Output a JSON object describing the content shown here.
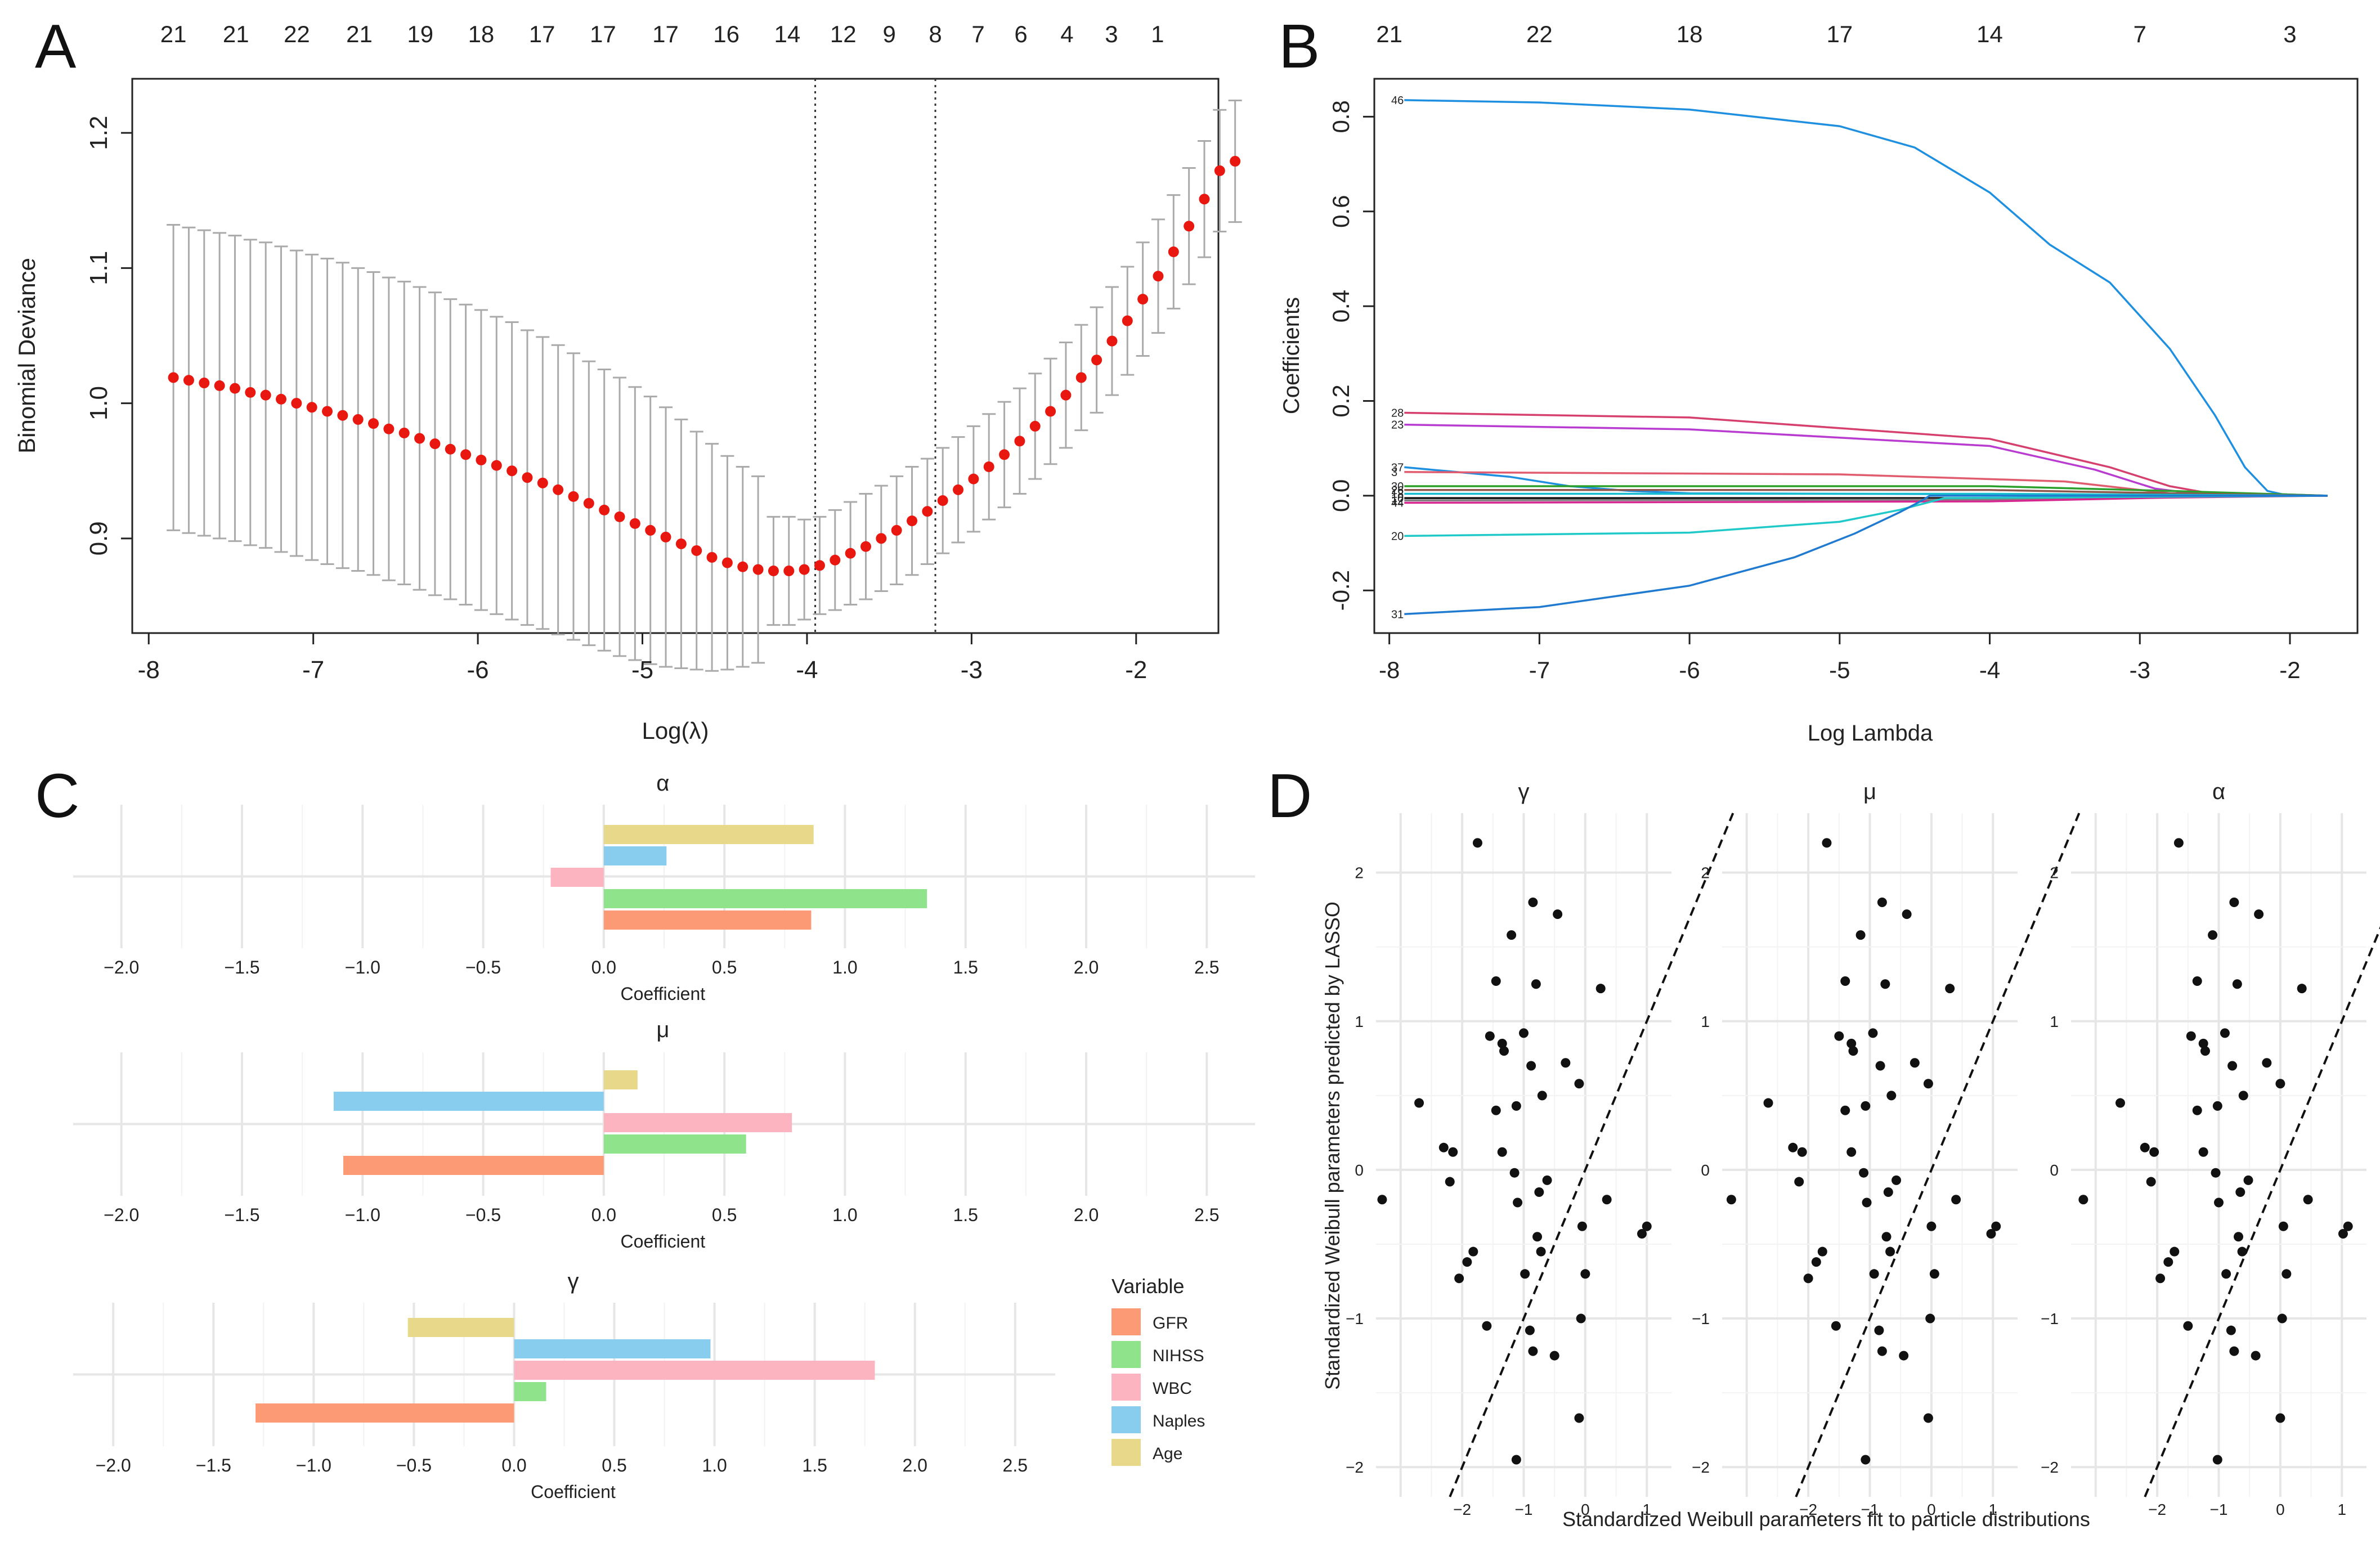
{
  "panels": {
    "a": "A",
    "b": "B",
    "c": "C",
    "d": "D"
  },
  "colors": {
    "cv_point": "#e8170f",
    "cv_bar": "#aaaaaa",
    "grid": "#e6e6e6",
    "gfr": "#fb9a74",
    "nihss": "#8ee38b",
    "wbc": "#fdb4c1",
    "naples": "#89cdee",
    "age": "#e8d88a"
  },
  "chart_data": [
    {
      "id": "cv",
      "type": "scatter",
      "title": "",
      "xlabel": "Log(λ)",
      "ylabel": "Binomial Deviance",
      "xlim": [
        -8.1,
        -1.5
      ],
      "ylim": [
        0.83,
        1.24
      ],
      "xticks": [
        -8,
        -7,
        -6,
        -5,
        -4,
        -3,
        -2
      ],
      "yticks": [
        0.9,
        1.0,
        1.1,
        1.2
      ],
      "top_axis": {
        "x": [
          -7.85,
          -7.47,
          -7.1,
          -6.72,
          -6.35,
          -5.98,
          -5.61,
          -5.24,
          -4.86,
          -4.49,
          -4.12,
          -3.78,
          -3.5,
          -3.22,
          -2.96,
          -2.7,
          -2.42,
          -2.15,
          -1.87
        ],
        "labels": [
          "21",
          "21",
          "22",
          "21",
          "19",
          "18",
          "17",
          "17",
          "17",
          "16",
          "14",
          "12",
          "9",
          "8",
          "7",
          "6",
          "4",
          "3",
          "1"
        ]
      },
      "vlines": [
        -3.95,
        -3.22
      ],
      "points": {
        "x_start": -7.85,
        "x_step": 0.0935,
        "y": [
          1.019,
          1.017,
          1.015,
          1.013,
          1.011,
          1.008,
          1.006,
          1.003,
          1.0,
          0.997,
          0.994,
          0.991,
          0.988,
          0.985,
          0.981,
          0.978,
          0.974,
          0.97,
          0.966,
          0.962,
          0.958,
          0.954,
          0.95,
          0.945,
          0.941,
          0.936,
          0.931,
          0.926,
          0.921,
          0.916,
          0.911,
          0.906,
          0.901,
          0.896,
          0.891,
          0.886,
          0.882,
          0.879,
          0.877,
          0.876,
          0.876,
          0.877,
          0.88,
          0.884,
          0.889,
          0.894,
          0.9,
          0.906,
          0.913,
          0.92,
          0.928,
          0.936,
          0.944,
          0.953,
          0.962,
          0.972,
          0.983,
          0.994,
          1.006,
          1.019,
          1.032,
          1.046,
          1.061,
          1.077,
          1.094,
          1.112,
          1.131,
          1.151,
          1.172,
          1.179
        ],
        "sd": [
          0.113,
          0.113,
          0.113,
          0.113,
          0.113,
          0.113,
          0.113,
          0.113,
          0.113,
          0.113,
          0.113,
          0.113,
          0.112,
          0.112,
          0.112,
          0.112,
          0.112,
          0.112,
          0.111,
          0.111,
          0.111,
          0.11,
          0.11,
          0.109,
          0.108,
          0.107,
          0.106,
          0.105,
          0.104,
          0.103,
          0.101,
          0.099,
          0.096,
          0.092,
          0.088,
          0.084,
          0.079,
          0.074,
          0.069,
          0.04,
          0.04,
          0.037,
          0.036,
          0.037,
          0.038,
          0.039,
          0.039,
          0.04,
          0.04,
          0.039,
          0.039,
          0.039,
          0.039,
          0.039,
          0.039,
          0.039,
          0.039,
          0.039,
          0.039,
          0.039,
          0.039,
          0.04,
          0.04,
          0.042,
          0.042,
          0.042,
          0.043,
          0.043,
          0.045,
          0.045
        ]
      }
    },
    {
      "id": "path",
      "type": "line",
      "title": "",
      "xlabel": "Log Lambda",
      "ylabel": "Coefficients",
      "xlim": [
        -8.1,
        -1.55
      ],
      "ylim": [
        -0.29,
        0.88
      ],
      "xticks": [
        -8,
        -7,
        -6,
        -5,
        -4,
        -3,
        -2
      ],
      "yticks": [
        -0.2,
        0.0,
        0.2,
        0.4,
        0.6,
        0.8
      ],
      "top_axis": {
        "x": [
          -8,
          -7,
          -6,
          -5,
          -4,
          -3,
          -2
        ],
        "labels": [
          "21",
          "22",
          "18",
          "17",
          "14",
          "7",
          "3"
        ]
      },
      "series": [
        {
          "name": "46",
          "color": "#1f8fe0",
          "x": [
            -7.9,
            -7,
            -6,
            -5,
            -4.5,
            -4,
            -3.6,
            -3.2,
            -2.8,
            -2.5,
            -2.3,
            -2.15,
            -2.05,
            -1.75
          ],
          "y": [
            0.835,
            0.83,
            0.815,
            0.78,
            0.735,
            0.64,
            0.53,
            0.45,
            0.31,
            0.17,
            0.06,
            0.01,
            0.003,
            0.0
          ]
        },
        {
          "name": "28",
          "color": "#d6406e",
          "x": [
            -7.9,
            -6,
            -4,
            -3.2,
            -2.8,
            -2.5,
            -1.75
          ],
          "y": [
            0.175,
            0.165,
            0.12,
            0.06,
            0.02,
            0.003,
            0.0
          ]
        },
        {
          "name": "23",
          "color": "#b83cd0",
          "x": [
            -7.9,
            -6,
            -4,
            -3.3,
            -2.9,
            -2.6,
            -1.75
          ],
          "y": [
            0.15,
            0.14,
            0.105,
            0.055,
            0.015,
            0.003,
            0.0
          ]
        },
        {
          "name": "37",
          "color": "#1f8fe0",
          "x": [
            -7.9,
            -7.2,
            -6.8,
            -6.4,
            -6,
            -5,
            -4,
            -3,
            -1.75
          ],
          "y": [
            0.06,
            0.04,
            0.02,
            0.01,
            0.005,
            0.004,
            0.003,
            0.002,
            0.0
          ]
        },
        {
          "name": "3",
          "color": "#e05c6e",
          "x": [
            -7.9,
            -5,
            -3.5,
            -2.8,
            -1.75
          ],
          "y": [
            0.05,
            0.045,
            0.03,
            0.005,
            0.0
          ]
        },
        {
          "name": "30",
          "color": "#2ca02c",
          "x": [
            -7.9,
            -4,
            -2.8,
            -1.75
          ],
          "y": [
            0.02,
            0.02,
            0.01,
            0.0
          ]
        },
        {
          "name": "26",
          "color": "#8c564b",
          "x": [
            -7.9,
            -4,
            -2.8,
            -1.75
          ],
          "y": [
            0.012,
            0.012,
            0.005,
            0.0
          ]
        },
        {
          "name": "18",
          "color": "#17becf",
          "x": [
            -7.9,
            -4,
            -2.8,
            -1.75
          ],
          "y": [
            0.004,
            0.004,
            0.002,
            0.0
          ]
        },
        {
          "name": "10",
          "color": "#111111",
          "x": [
            -7.9,
            -4,
            -2.8,
            -1.75
          ],
          "y": [
            -0.005,
            -0.005,
            -0.002,
            0.0
          ]
        },
        {
          "name": "12",
          "color": "#7f7f7f",
          "x": [
            -7.9,
            -4,
            -2.8,
            -1.75
          ],
          "y": [
            -0.01,
            -0.008,
            -0.003,
            0.0
          ]
        },
        {
          "name": "44",
          "color": "#d62790",
          "x": [
            -7.9,
            -4,
            -2.8,
            -1.75
          ],
          "y": [
            -0.015,
            -0.012,
            -0.004,
            0.0
          ]
        },
        {
          "name": "20",
          "color": "#20c9c9",
          "x": [
            -7.9,
            -6,
            -5,
            -4.6,
            -4.3,
            -1.75
          ],
          "y": [
            -0.085,
            -0.078,
            -0.055,
            -0.03,
            -0.005,
            0.0
          ]
        },
        {
          "name": "31",
          "color": "#1f7ad0",
          "x": [
            -7.9,
            -7,
            -6,
            -5.3,
            -4.9,
            -4.6,
            -4.45,
            -4.4,
            -1.75
          ],
          "y": [
            -0.25,
            -0.235,
            -0.19,
            -0.13,
            -0.08,
            -0.035,
            -0.01,
            0.0,
            0.0
          ]
        }
      ]
    },
    {
      "id": "alpha",
      "type": "bar",
      "title": "α",
      "xlabel": "Coefficient",
      "ylabel": "",
      "xlim": [
        -2.2,
        2.7
      ],
      "xticks": [
        -2.0,
        -1.5,
        -1.0,
        -0.5,
        0.0,
        0.5,
        1.0,
        1.5,
        2.0,
        2.5
      ],
      "tick_labels": [
        "−2.0",
        "−1.5",
        "−1.0",
        "−0.5",
        "0.0",
        "0.5",
        "1.0",
        "1.5",
        "2.0",
        "2.5"
      ],
      "categories": [
        "Age",
        "Naples",
        "WBC",
        "NIHSS",
        "GFR"
      ],
      "values": [
        0.87,
        0.26,
        -0.22,
        1.34,
        0.86
      ]
    },
    {
      "id": "mu",
      "type": "bar",
      "title": "μ",
      "xlabel": "Coefficient",
      "ylabel": "",
      "xlim": [
        -2.2,
        2.7
      ],
      "xticks": [
        -2.0,
        -1.5,
        -1.0,
        -0.5,
        0.0,
        0.5,
        1.0,
        1.5,
        2.0,
        2.5
      ],
      "tick_labels": [
        "−2.0",
        "−1.5",
        "−1.0",
        "−0.5",
        "0.0",
        "0.5",
        "1.0",
        "1.5",
        "2.0",
        "2.5"
      ],
      "categories": [
        "Age",
        "Naples",
        "WBC",
        "NIHSS",
        "GFR"
      ],
      "values": [
        0.14,
        -1.12,
        0.78,
        0.59,
        -1.08
      ]
    },
    {
      "id": "gamma",
      "type": "bar",
      "title": "γ",
      "xlabel": "Coefficient",
      "ylabel": "",
      "xlim": [
        -2.2,
        2.7
      ],
      "xticks": [
        -2.0,
        -1.5,
        -1.0,
        -0.5,
        0.0,
        0.5,
        1.0,
        1.5,
        2.0,
        2.5
      ],
      "tick_labels": [
        "−2.0",
        "−1.5",
        "−1.0",
        "−0.5",
        "0.0",
        "0.5",
        "1.0",
        "1.5",
        "2.0",
        "2.5"
      ],
      "categories": [
        "Age",
        "Naples",
        "WBC",
        "NIHSS",
        "GFR"
      ],
      "values": [
        -0.53,
        0.98,
        1.8,
        0.16,
        -1.29
      ]
    },
    {
      "id": "scatter",
      "type": "scatter",
      "title": "",
      "xlabel": "Standardized Weibull parameters fit to particle distributions",
      "ylabel": "Standardized Weibull parameters predicted by LASSO",
      "xlim": [
        -3.4,
        1.4
      ],
      "ylim": [
        -2.2,
        2.4
      ],
      "xticks": [
        -2,
        -1,
        0,
        1
      ],
      "yticks": [
        -2,
        -1,
        0,
        1,
        2
      ],
      "tick_labels_x": [
        "−2",
        "−1",
        "0",
        "1"
      ],
      "tick_labels_y": [
        "−2",
        "−1",
        "0",
        "1",
        "2"
      ],
      "facets": [
        "γ",
        "μ",
        "α"
      ],
      "diagonal_slope": 1,
      "x": [
        -1.75,
        -0.85,
        -1.2,
        -0.45,
        0.25,
        -1.45,
        -0.8,
        -1.0,
        -1.35,
        -1.55,
        -1.32,
        -0.88,
        -1.12,
        -0.7,
        -0.32,
        -2.7,
        -1.45,
        -1.15,
        -0.1,
        -2.3,
        -2.15,
        -1.35,
        -2.2,
        -0.62,
        -3.3,
        -0.75,
        -0.05,
        0.35,
        1.0,
        0.92,
        -1.1,
        -0.78,
        -1.82,
        -1.92,
        -0.98,
        0.0,
        -0.72,
        -2.05,
        -1.6,
        -0.85,
        -0.5,
        -0.07,
        -0.9,
        -0.1,
        -1.12
      ],
      "y": [
        2.2,
        1.8,
        1.58,
        1.72,
        1.22,
        1.27,
        1.25,
        0.92,
        0.85,
        0.9,
        0.8,
        0.7,
        0.43,
        0.5,
        0.72,
        0.45,
        0.4,
        -0.02,
        0.58,
        0.15,
        0.12,
        0.12,
        -0.08,
        -0.07,
        -0.2,
        -0.15,
        -0.38,
        -0.2,
        -0.38,
        -0.43,
        -0.22,
        -0.45,
        -0.55,
        -0.62,
        -0.7,
        -0.7,
        -0.55,
        -0.73,
        -1.05,
        -1.22,
        -1.25,
        -1.0,
        -1.08,
        -1.67,
        -1.95
      ]
    }
  ],
  "legend": {
    "title": "Variable",
    "items": [
      "GFR",
      "NIHSS",
      "WBC",
      "Naples",
      "Age"
    ]
  }
}
